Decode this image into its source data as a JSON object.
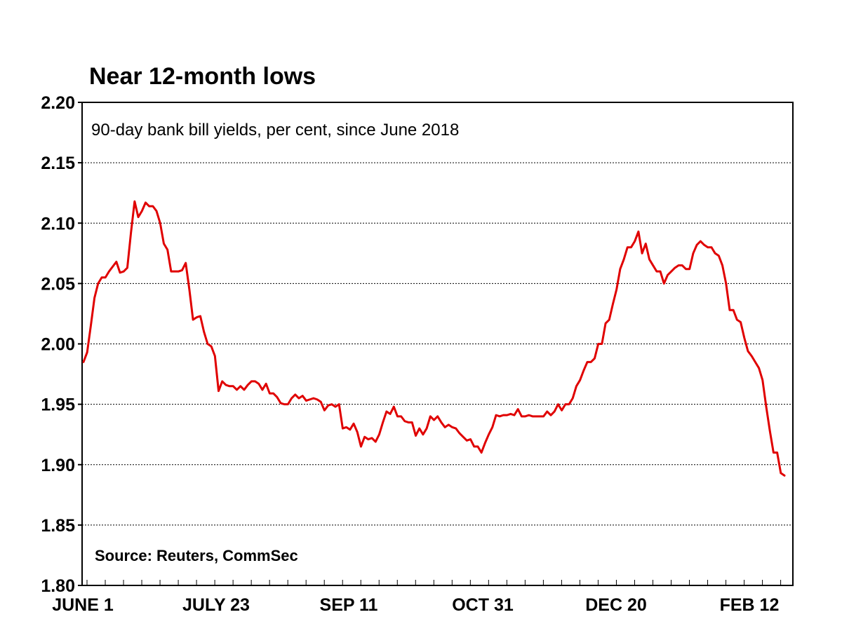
{
  "chart_data": {
    "type": "line",
    "title": "Near 12-month lows",
    "subtitle": "90-day bank bill yields, per cent, since June 2018",
    "source": "Source: Reuters, CommSec",
    "ylim": [
      1.8,
      2.2
    ],
    "yticks": [
      "2.20",
      "2.15",
      "2.10",
      "2.05",
      "2.00",
      "1.95",
      "1.90",
      "1.85",
      "1.80"
    ],
    "xticks": [
      "JUNE 1",
      "JULY 23",
      "SEP 11",
      "OCT 31",
      "DEC 20",
      "FEB 12"
    ],
    "grid": true,
    "series": [
      {
        "color": "#e00000",
        "values": [
          1.985,
          1.993,
          2.015,
          2.038,
          2.05,
          2.055,
          2.055,
          2.06,
          2.064,
          2.068,
          2.059,
          2.06,
          2.063,
          2.092,
          2.118,
          2.105,
          2.11,
          2.117,
          2.114,
          2.114,
          2.11,
          2.1,
          2.083,
          2.078,
          2.06,
          2.06,
          2.06,
          2.061,
          2.067,
          2.045,
          2.02,
          2.022,
          2.023,
          2.01,
          2.0,
          1.998,
          1.99,
          1.961,
          1.969,
          1.966,
          1.965,
          1.965,
          1.962,
          1.965,
          1.962,
          1.966,
          1.969,
          1.969,
          1.967,
          1.962,
          1.967,
          1.959,
          1.959,
          1.956,
          1.951,
          1.95,
          1.95,
          1.955,
          1.958,
          1.955,
          1.957,
          1.953,
          1.954,
          1.955,
          1.954,
          1.952,
          1.945,
          1.949,
          1.95,
          1.948,
          1.95,
          1.93,
          1.931,
          1.929,
          1.934,
          1.927,
          1.915,
          1.923,
          1.921,
          1.922,
          1.919,
          1.925,
          1.935,
          1.944,
          1.942,
          1.948,
          1.94,
          1.94,
          1.936,
          1.935,
          1.935,
          1.924,
          1.93,
          1.925,
          1.93,
          1.94,
          1.937,
          1.94,
          1.935,
          1.931,
          1.933,
          1.931,
          1.93,
          1.926,
          1.923,
          1.92,
          1.921,
          1.915,
          1.915,
          1.91,
          1.918,
          1.925,
          1.931,
          1.941,
          1.94,
          1.941,
          1.941,
          1.942,
          1.941,
          1.946,
          1.94,
          1.94,
          1.941,
          1.94,
          1.94,
          1.94,
          1.94,
          1.944,
          1.941,
          1.944,
          1.95,
          1.945,
          1.95,
          1.95,
          1.955,
          1.965,
          1.97,
          1.978,
          1.985,
          1.985,
          1.988,
          2.0,
          2.0,
          2.017,
          2.02,
          2.033,
          2.045,
          2.062,
          2.07,
          2.08,
          2.08,
          2.085,
          2.093,
          2.075,
          2.083,
          2.07,
          2.065,
          2.06,
          2.06,
          2.05,
          2.057,
          2.06,
          2.063,
          2.065,
          2.065,
          2.062,
          2.062,
          2.075,
          2.082,
          2.085,
          2.082,
          2.08,
          2.08,
          2.075,
          2.073,
          2.065,
          2.05,
          2.028,
          2.028,
          2.02,
          2.018,
          2.005,
          1.994,
          1.99,
          1.985,
          1.98,
          1.97,
          1.948,
          1.928,
          1.91,
          1.91,
          1.893,
          1.891
        ]
      }
    ]
  }
}
